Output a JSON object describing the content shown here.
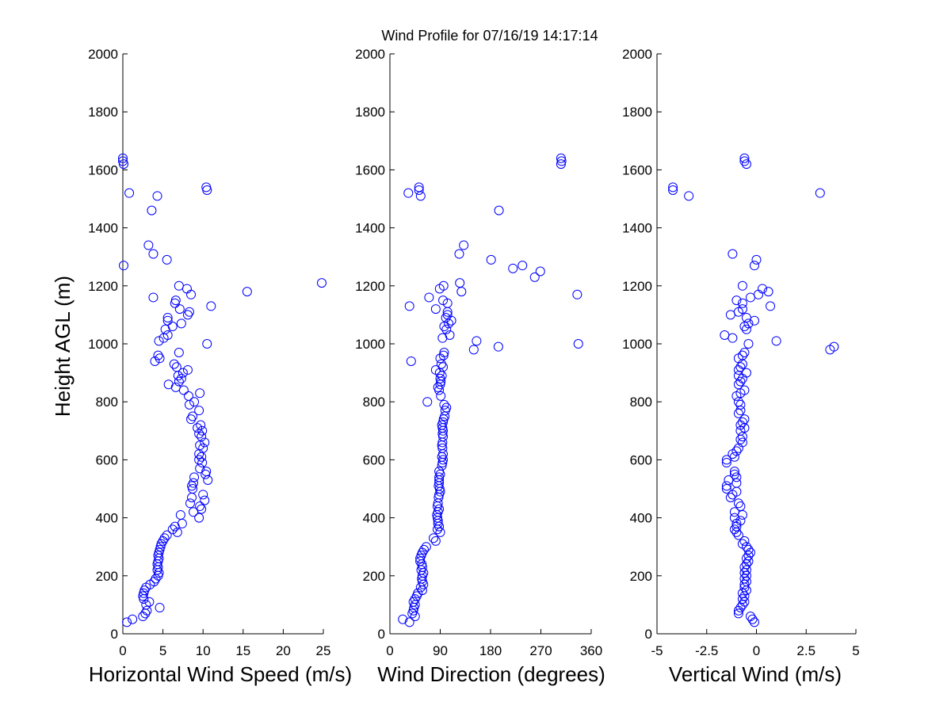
{
  "title": "Wind Profile for  07/16/19 14:17:14",
  "marker_color": "#0000ff",
  "y_axis": {
    "label": "Height AGL (m)",
    "ticks": [
      "0",
      "200",
      "400",
      "600",
      "800",
      "1000",
      "1200",
      "1400",
      "1600",
      "1800",
      "2000"
    ]
  },
  "chart_data": [
    {
      "type": "scatter",
      "xlabel": "Horizontal Wind Speed (m/s)",
      "ylabel": "Height AGL (m)",
      "xlim": [
        0,
        25
      ],
      "ylim": [
        0,
        2000
      ],
      "xticks": [
        0,
        5,
        10,
        15,
        20,
        25
      ],
      "xtick_labels": [
        "0",
        "5",
        "10",
        "15",
        "20",
        "25"
      ],
      "grid": false,
      "points": [
        [
          0.5,
          40
        ],
        [
          1.2,
          50
        ],
        [
          2.5,
          60
        ],
        [
          2.8,
          70
        ],
        [
          3.0,
          80
        ],
        [
          4.6,
          90
        ],
        [
          2.9,
          100
        ],
        [
          3.3,
          110
        ],
        [
          2.6,
          120
        ],
        [
          2.5,
          130
        ],
        [
          2.6,
          140
        ],
        [
          2.7,
          150
        ],
        [
          2.9,
          160
        ],
        [
          3.4,
          170
        ],
        [
          3.9,
          180
        ],
        [
          4.1,
          190
        ],
        [
          4.4,
          200
        ],
        [
          4.5,
          210
        ],
        [
          4.3,
          220
        ],
        [
          4.4,
          230
        ],
        [
          4.3,
          240
        ],
        [
          4.4,
          250
        ],
        [
          4.5,
          260
        ],
        [
          4.4,
          270
        ],
        [
          4.5,
          280
        ],
        [
          4.6,
          290
        ],
        [
          4.7,
          300
        ],
        [
          4.8,
          310
        ],
        [
          5.0,
          320
        ],
        [
          5.2,
          330
        ],
        [
          5.5,
          340
        ],
        [
          6.8,
          350
        ],
        [
          6.2,
          360
        ],
        [
          6.5,
          370
        ],
        [
          7.4,
          380
        ],
        [
          9.5,
          400
        ],
        [
          7.2,
          410
        ],
        [
          8.8,
          420
        ],
        [
          9.8,
          430
        ],
        [
          9.6,
          440
        ],
        [
          8.4,
          450
        ],
        [
          10.2,
          460
        ],
        [
          8.6,
          470
        ],
        [
          10.0,
          480
        ],
        [
          8.7,
          500
        ],
        [
          8.6,
          510
        ],
        [
          8.8,
          520
        ],
        [
          10.6,
          530
        ],
        [
          8.9,
          540
        ],
        [
          10.3,
          550
        ],
        [
          10.4,
          560
        ],
        [
          9.6,
          570
        ],
        [
          9.9,
          590
        ],
        [
          9.5,
          600
        ],
        [
          9.8,
          610
        ],
        [
          9.5,
          620
        ],
        [
          10.0,
          640
        ],
        [
          9.6,
          650
        ],
        [
          10.2,
          660
        ],
        [
          9.8,
          680
        ],
        [
          9.5,
          690
        ],
        [
          9.9,
          700
        ],
        [
          9.3,
          710
        ],
        [
          9.7,
          720
        ],
        [
          8.5,
          740
        ],
        [
          8.7,
          750
        ],
        [
          9.5,
          770
        ],
        [
          8.3,
          790
        ],
        [
          8.9,
          800
        ],
        [
          8.2,
          820
        ],
        [
          9.6,
          830
        ],
        [
          7.6,
          840
        ],
        [
          6.6,
          850
        ],
        [
          5.7,
          860
        ],
        [
          7.0,
          870
        ],
        [
          7.3,
          880
        ],
        [
          6.9,
          890
        ],
        [
          7.5,
          900
        ],
        [
          8.1,
          910
        ],
        [
          6.7,
          920
        ],
        [
          6.4,
          930
        ],
        [
          4.0,
          940
        ],
        [
          4.6,
          950
        ],
        [
          4.4,
          960
        ],
        [
          7.0,
          970
        ],
        [
          10.5,
          1000
        ],
        [
          4.5,
          1010
        ],
        [
          5.1,
          1020
        ],
        [
          5.6,
          1030
        ],
        [
          5.3,
          1050
        ],
        [
          6.2,
          1060
        ],
        [
          7.3,
          1070
        ],
        [
          5.6,
          1080
        ],
        [
          5.6,
          1090
        ],
        [
          8.1,
          1100
        ],
        [
          8.3,
          1110
        ],
        [
          7.1,
          1120
        ],
        [
          11.0,
          1130
        ],
        [
          6.5,
          1140
        ],
        [
          6.6,
          1150
        ],
        [
          3.8,
          1160
        ],
        [
          8.5,
          1170
        ],
        [
          15.5,
          1180
        ],
        [
          8.0,
          1190
        ],
        [
          7.0,
          1200
        ],
        [
          24.8,
          1210
        ],
        [
          0.1,
          1270
        ],
        [
          5.5,
          1290
        ],
        [
          3.8,
          1310
        ],
        [
          3.2,
          1340
        ],
        [
          3.6,
          1460
        ],
        [
          4.3,
          1510
        ],
        [
          0.8,
          1520
        ],
        [
          10.5,
          1530
        ],
        [
          10.4,
          1540
        ],
        [
          0.1,
          1620
        ],
        [
          0.0,
          1630
        ],
        [
          0.0,
          1640
        ]
      ]
    },
    {
      "type": "scatter",
      "xlabel": "Wind Direction (degrees)",
      "ylabel": "",
      "xlim": [
        0,
        360
      ],
      "ylim": [
        0,
        2000
      ],
      "xticks": [
        0,
        90,
        180,
        270,
        360
      ],
      "xtick_labels": [
        "0",
        "90",
        "180",
        "270",
        "360"
      ],
      "grid": false,
      "points": [
        [
          23,
          50
        ],
        [
          35,
          40
        ],
        [
          45,
          60
        ],
        [
          40,
          70
        ],
        [
          42,
          80
        ],
        [
          43,
          90
        ],
        [
          45,
          100
        ],
        [
          42,
          110
        ],
        [
          45,
          120
        ],
        [
          48,
          130
        ],
        [
          50,
          140
        ],
        [
          58,
          150
        ],
        [
          55,
          160
        ],
        [
          60,
          170
        ],
        [
          58,
          180
        ],
        [
          57,
          190
        ],
        [
          58,
          200
        ],
        [
          60,
          210
        ],
        [
          56,
          220
        ],
        [
          58,
          230
        ],
        [
          57,
          240
        ],
        [
          54,
          250
        ],
        [
          54,
          260
        ],
        [
          56,
          270
        ],
        [
          58,
          280
        ],
        [
          61,
          290
        ],
        [
          65,
          300
        ],
        [
          82,
          320
        ],
        [
          78,
          330
        ],
        [
          90,
          350
        ],
        [
          85,
          360
        ],
        [
          88,
          370
        ],
        [
          86,
          380
        ],
        [
          86,
          390
        ],
        [
          85,
          400
        ],
        [
          84,
          410
        ],
        [
          86,
          420
        ],
        [
          88,
          430
        ],
        [
          85,
          440
        ],
        [
          86,
          450
        ],
        [
          87,
          470
        ],
        [
          88,
          480
        ],
        [
          90,
          490
        ],
        [
          89,
          500
        ],
        [
          87,
          510
        ],
        [
          88,
          520
        ],
        [
          88,
          530
        ],
        [
          88,
          540
        ],
        [
          90,
          550
        ],
        [
          88,
          560
        ],
        [
          93,
          580
        ],
        [
          94,
          590
        ],
        [
          95,
          600
        ],
        [
          93,
          610
        ],
        [
          95,
          620
        ],
        [
          94,
          640
        ],
        [
          93,
          650
        ],
        [
          94,
          660
        ],
        [
          95,
          680
        ],
        [
          94,
          690
        ],
        [
          95,
          700
        ],
        [
          94,
          710
        ],
        [
          93,
          720
        ],
        [
          95,
          730
        ],
        [
          96,
          740
        ],
        [
          98,
          750
        ],
        [
          99,
          770
        ],
        [
          101,
          780
        ],
        [
          97,
          790
        ],
        [
          67,
          800
        ],
        [
          91,
          820
        ],
        [
          88,
          840
        ],
        [
          86,
          850
        ],
        [
          90,
          860
        ],
        [
          91,
          870
        ],
        [
          90,
          880
        ],
        [
          93,
          890
        ],
        [
          89,
          900
        ],
        [
          82,
          910
        ],
        [
          95,
          920
        ],
        [
          92,
          930
        ],
        [
          38,
          940
        ],
        [
          90,
          950
        ],
        [
          96,
          960
        ],
        [
          97,
          970
        ],
        [
          150,
          980
        ],
        [
          194,
          990
        ],
        [
          337,
          1000
        ],
        [
          155,
          1010
        ],
        [
          94,
          1020
        ],
        [
          107,
          1030
        ],
        [
          101,
          1050
        ],
        [
          97,
          1060
        ],
        [
          105,
          1070
        ],
        [
          110,
          1080
        ],
        [
          100,
          1090
        ],
        [
          103,
          1100
        ],
        [
          103,
          1110
        ],
        [
          82,
          1120
        ],
        [
          35,
          1130
        ],
        [
          103,
          1140
        ],
        [
          95,
          1150
        ],
        [
          70,
          1160
        ],
        [
          335,
          1170
        ],
        [
          128,
          1180
        ],
        [
          89,
          1190
        ],
        [
          96,
          1200
        ],
        [
          125,
          1210
        ],
        [
          259,
          1230
        ],
        [
          269,
          1250
        ],
        [
          220,
          1260
        ],
        [
          237,
          1270
        ],
        [
          181,
          1290
        ],
        [
          124,
          1310
        ],
        [
          132,
          1340
        ],
        [
          195,
          1460
        ],
        [
          55,
          1510
        ],
        [
          33,
          1520
        ],
        [
          52,
          1530
        ],
        [
          52,
          1540
        ],
        [
          306,
          1620
        ],
        [
          307,
          1630
        ],
        [
          306,
          1640
        ]
      ]
    },
    {
      "type": "scatter",
      "xlabel": "Vertical Wind (m/s)",
      "ylabel": "",
      "xlim": [
        -5,
        5
      ],
      "ylim": [
        0,
        2000
      ],
      "xticks": [
        -5,
        -2.5,
        0,
        2.5,
        5
      ],
      "xtick_labels": [
        "-5",
        "-2.5",
        "0",
        "2.5",
        "5"
      ],
      "grid": false,
      "points": [
        [
          -0.1,
          40
        ],
        [
          -0.2,
          50
        ],
        [
          -0.3,
          60
        ],
        [
          -0.9,
          70
        ],
        [
          -0.9,
          80
        ],
        [
          -0.8,
          90
        ],
        [
          -0.7,
          100
        ],
        [
          -0.6,
          110
        ],
        [
          -0.7,
          120
        ],
        [
          -0.6,
          130
        ],
        [
          -0.7,
          140
        ],
        [
          -0.5,
          150
        ],
        [
          -0.6,
          160
        ],
        [
          -0.6,
          170
        ],
        [
          -0.5,
          180
        ],
        [
          -0.6,
          190
        ],
        [
          -0.5,
          200
        ],
        [
          -0.6,
          210
        ],
        [
          -0.5,
          220
        ],
        [
          -0.6,
          230
        ],
        [
          -0.5,
          240
        ],
        [
          -0.4,
          250
        ],
        [
          -0.5,
          260
        ],
        [
          -0.4,
          270
        ],
        [
          -0.3,
          280
        ],
        [
          -0.4,
          290
        ],
        [
          -0.5,
          300
        ],
        [
          -0.7,
          310
        ],
        [
          -0.6,
          320
        ],
        [
          -0.9,
          340
        ],
        [
          -1.0,
          350
        ],
        [
          -1.1,
          360
        ],
        [
          -1.0,
          370
        ],
        [
          -1.0,
          380
        ],
        [
          -0.8,
          390
        ],
        [
          -1.1,
          400
        ],
        [
          -0.7,
          410
        ],
        [
          -1.1,
          420
        ],
        [
          -0.8,
          440
        ],
        [
          -0.9,
          450
        ],
        [
          -1.3,
          470
        ],
        [
          -1.2,
          480
        ],
        [
          -1.0,
          490
        ],
        [
          -1.5,
          500
        ],
        [
          -1.5,
          510
        ],
        [
          -1.0,
          520
        ],
        [
          -1.4,
          530
        ],
        [
          -1.0,
          540
        ],
        [
          -1.1,
          550
        ],
        [
          -1.1,
          560
        ],
        [
          -1.5,
          590
        ],
        [
          -1.5,
          600
        ],
        [
          -1.1,
          610
        ],
        [
          -1.2,
          620
        ],
        [
          -1.0,
          630
        ],
        [
          -0.9,
          640
        ],
        [
          -0.7,
          660
        ],
        [
          -0.8,
          670
        ],
        [
          -0.7,
          680
        ],
        [
          -0.8,
          700
        ],
        [
          -0.6,
          710
        ],
        [
          -0.8,
          720
        ],
        [
          -0.7,
          730
        ],
        [
          -0.6,
          740
        ],
        [
          -0.9,
          760
        ],
        [
          -0.8,
          770
        ],
        [
          -0.8,
          790
        ],
        [
          -0.9,
          800
        ],
        [
          -1.0,
          820
        ],
        [
          -0.8,
          830
        ],
        [
          -0.6,
          840
        ],
        [
          -0.9,
          860
        ],
        [
          -0.8,
          870
        ],
        [
          -0.7,
          880
        ],
        [
          -0.9,
          890
        ],
        [
          -0.5,
          900
        ],
        [
          -0.9,
          910
        ],
        [
          -0.8,
          920
        ],
        [
          -0.7,
          930
        ],
        [
          -0.9,
          950
        ],
        [
          -0.7,
          960
        ],
        [
          -0.6,
          970
        ],
        [
          3.7,
          980
        ],
        [
          3.9,
          990
        ],
        [
          -0.4,
          1000
        ],
        [
          1.0,
          1010
        ],
        [
          -1.2,
          1020
        ],
        [
          -1.6,
          1030
        ],
        [
          -0.5,
          1050
        ],
        [
          -0.6,
          1060
        ],
        [
          -0.4,
          1070
        ],
        [
          -0.1,
          1080
        ],
        [
          -0.5,
          1090
        ],
        [
          -1.3,
          1100
        ],
        [
          -0.9,
          1110
        ],
        [
          -0.7,
          1120
        ],
        [
          0.7,
          1130
        ],
        [
          -0.7,
          1140
        ],
        [
          -1.0,
          1150
        ],
        [
          -0.3,
          1160
        ],
        [
          0.1,
          1170
        ],
        [
          0.6,
          1180
        ],
        [
          0.3,
          1190
        ],
        [
          -0.7,
          1200
        ],
        [
          -0.1,
          1270
        ],
        [
          0.0,
          1290
        ],
        [
          -1.2,
          1310
        ],
        [
          -3.4,
          1510
        ],
        [
          3.2,
          1520
        ],
        [
          -4.2,
          1530
        ],
        [
          -4.2,
          1540
        ],
        [
          -0.5,
          1620
        ],
        [
          -0.6,
          1630
        ],
        [
          -0.6,
          1640
        ]
      ]
    }
  ]
}
